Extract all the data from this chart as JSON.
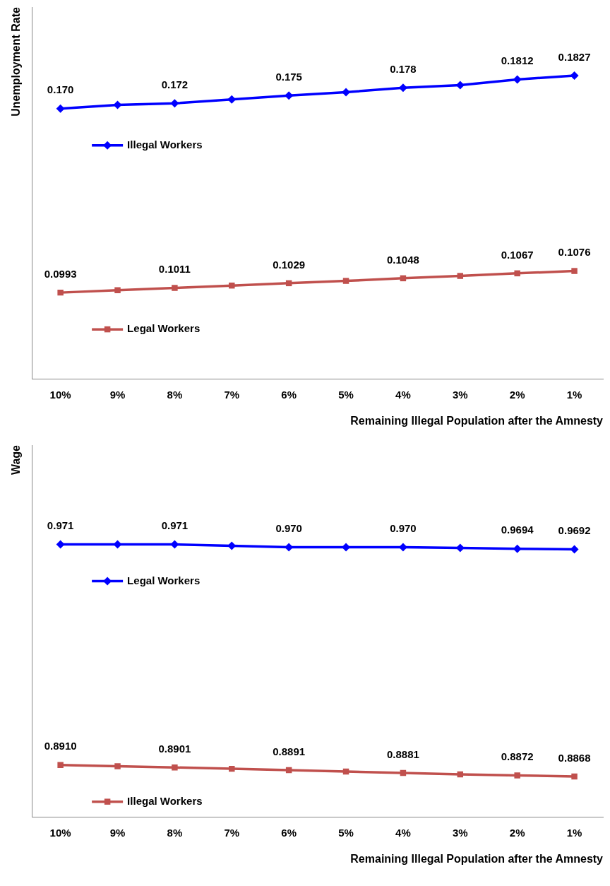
{
  "chart_data": [
    {
      "type": "line",
      "legend": "left",
      "ylabel": "Unemployment Rate",
      "xlabel": "Remaining Illegal Population after the Amnesty",
      "categories": [
        "10%",
        "9%",
        "8%",
        "7%",
        "6%",
        "5%",
        "4%",
        "3%",
        "2%",
        "1%"
      ],
      "ylim": [
        0.066,
        0.209
      ],
      "tick_labels": "x",
      "grid": false,
      "series": [
        {
          "name": "Illegal Workers",
          "color": "#0000ff",
          "marker": "diamond",
          "values": [
            0.17,
            0.1714,
            0.172,
            0.1735,
            0.175,
            0.1763,
            0.178,
            0.179,
            0.1812,
            0.1827
          ],
          "value_labels": [
            "0.170",
            null,
            "0.172",
            null,
            "0.175",
            null,
            "0.178",
            null,
            "0.1812",
            "0.1827"
          ]
        },
        {
          "name": "Legal Workers",
          "color": "#c0504d",
          "marker": "square",
          "values": [
            0.0993,
            0.1002,
            0.1011,
            0.102,
            0.1029,
            0.1038,
            0.1048,
            0.1057,
            0.1067,
            0.1076
          ],
          "value_labels": [
            "0.0993",
            null,
            "0.1011",
            null,
            "0.1029",
            null,
            "0.1048",
            null,
            "0.1067",
            "0.1076"
          ]
        }
      ]
    },
    {
      "type": "line",
      "legend": "left",
      "ylabel": "Wage",
      "xlabel": "Remaining Illegal Population after the Amnesty",
      "categories": [
        "10%",
        "9%",
        "8%",
        "7%",
        "6%",
        "5%",
        "4%",
        "3%",
        "2%",
        "1%"
      ],
      "ylim": [
        0.872,
        1.007
      ],
      "tick_labels": "x",
      "grid": false,
      "series": [
        {
          "name": "Legal Workers",
          "color": "#0000ff",
          "marker": "diamond",
          "values": [
            0.971,
            0.971,
            0.971,
            0.9705,
            0.97,
            0.97,
            0.97,
            0.9697,
            0.9694,
            0.9692
          ],
          "value_labels": [
            "0.971",
            null,
            "0.971",
            null,
            "0.970",
            null,
            "0.970",
            null,
            "0.9694",
            "0.9692"
          ]
        },
        {
          "name": "Illegal Workers",
          "color": "#c0504d",
          "marker": "square",
          "values": [
            0.891,
            0.8905,
            0.8901,
            0.8896,
            0.8891,
            0.8886,
            0.8881,
            0.8876,
            0.8872,
            0.8868
          ],
          "value_labels": [
            "0.8910",
            null,
            "0.8901",
            null,
            "0.8891",
            null,
            "0.8881",
            null,
            "0.8872",
            "0.8868"
          ]
        }
      ]
    }
  ]
}
